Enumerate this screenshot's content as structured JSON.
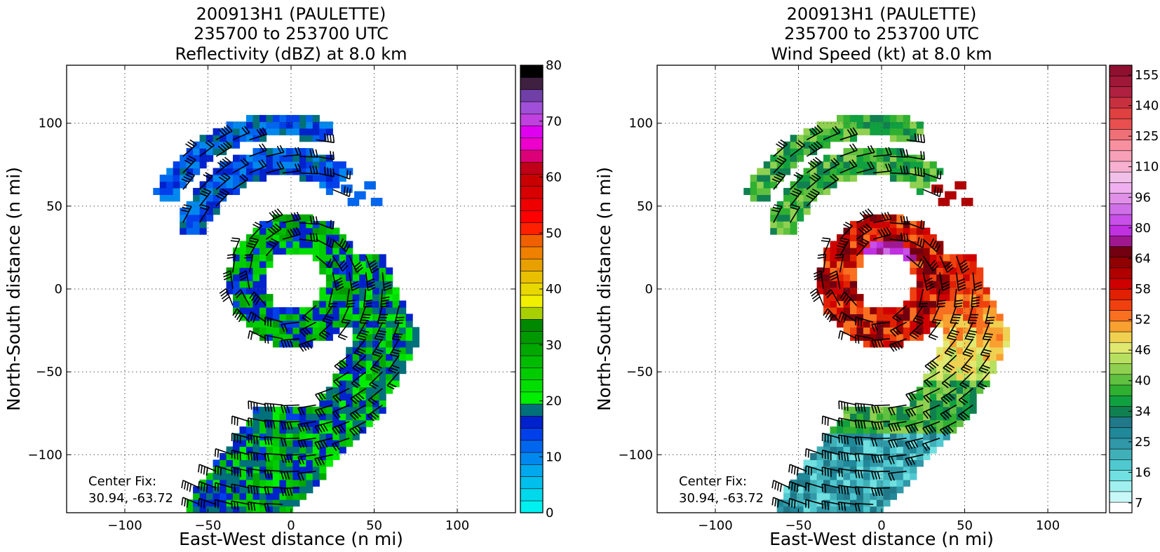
{
  "chart_data": [
    {
      "type": "heatmap",
      "title": [
        "200913H1 (PAULETTE)",
        "235700 to 253700 UTC",
        "Reflectivity (dBZ) at 8.0 km"
      ],
      "xlabel": "East-West distance (n mi)",
      "ylabel": "North-South distance (n mi)",
      "xlim": [
        -135,
        135
      ],
      "ylim": [
        -135,
        135
      ],
      "xticks": [
        -100,
        -50,
        0,
        50,
        100
      ],
      "yticks": [
        -100,
        -50,
        0,
        50,
        100
      ],
      "xtick_labels": [
        "−100",
        "−50",
        "0",
        "50",
        "100"
      ],
      "ytick_labels": [
        "−100",
        "−50",
        "0",
        "50",
        "100"
      ],
      "grid": true,
      "annotation": [
        "Center Fix:",
        "30.94, -63.72"
      ],
      "colorbar": {
        "min": 0,
        "max": 80,
        "tick_values": [
          0,
          10,
          20,
          30,
          40,
          50,
          60,
          70,
          80
        ],
        "tick_labels": [
          "0",
          "10",
          "20",
          "30",
          "40",
          "50",
          "60",
          "70",
          "80"
        ],
        "colors": [
          "#00f0f0",
          "#00d8ec",
          "#00bfec",
          "#00a8ee",
          "#0088ee",
          "#0066ee",
          "#0040ea",
          "#0022cc",
          "#00707a",
          "#00ee00",
          "#00de00",
          "#00cc00",
          "#00bc00",
          "#00a800",
          "#009800",
          "#008800",
          "#a8d000",
          "#f0f000",
          "#e8d800",
          "#e8c000",
          "#e8a000",
          "#f08000",
          "#f06000",
          "#ff2000",
          "#ff0000",
          "#ee0000",
          "#d80000",
          "#c80000",
          "#c00018",
          "#dc0078",
          "#ee00cc",
          "#e000f0",
          "#c040e0",
          "#a050d8",
          "#7040a8",
          "#402040",
          "#000000"
        ]
      },
      "field": "reflectivity"
    },
    {
      "type": "heatmap",
      "title": [
        "200913H1 (PAULETTE)",
        "235700 to 253700 UTC",
        "Wind Speed (kt) at 8.0 km"
      ],
      "xlabel": "East-West distance (n mi)",
      "ylabel": "North-South distance (n mi)",
      "xlim": [
        -135,
        135
      ],
      "ylim": [
        -135,
        135
      ],
      "xticks": [
        -100,
        -50,
        0,
        50,
        100
      ],
      "yticks": [
        -100,
        -50,
        0,
        50,
        100
      ],
      "xtick_labels": [
        "−100",
        "−50",
        "0",
        "50",
        "100"
      ],
      "ytick_labels": [
        "−100",
        "−50",
        "0",
        "50",
        "100"
      ],
      "grid": true,
      "annotation": [
        "Center Fix:",
        "30.94, -63.72"
      ],
      "colorbar": {
        "tick_labels": [
          "7",
          "16",
          "25",
          "34",
          "40",
          "46",
          "52",
          "58",
          "64",
          "80",
          "96",
          "110",
          "125",
          "140",
          "155"
        ],
        "colors": [
          "#ffffff",
          "#c8f8f8",
          "#a0f0f0",
          "#70e0e0",
          "#50c8d0",
          "#40b0b8",
          "#3098a8",
          "#208898",
          "#207888",
          "#108050",
          "#10a040",
          "#30b030",
          "#60c040",
          "#90d050",
          "#b8e060",
          "#e0e870",
          "#f0d050",
          "#f8a030",
          "#f87020",
          "#f04010",
          "#e02000",
          "#d00000",
          "#b00000",
          "#900000",
          "#700010",
          "#a01890",
          "#c030e0",
          "#c850e8",
          "#d070e8",
          "#e090e8",
          "#f0b0f0",
          "#f0c0e8",
          "#f8b0d0",
          "#f8a0b8",
          "#f890a0",
          "#f07078",
          "#e85050",
          "#e04040",
          "#c83040",
          "#b02040",
          "#a01838",
          "#901030"
        ]
      },
      "field": "wind"
    }
  ]
}
